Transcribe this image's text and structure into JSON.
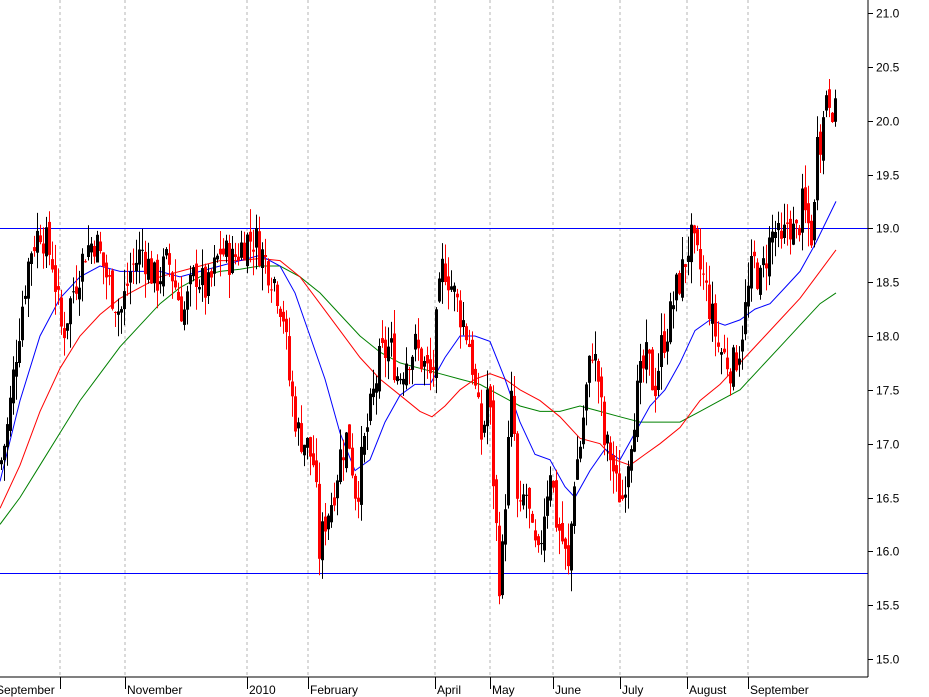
{
  "chart_data": {
    "type": "candlestick",
    "title": "",
    "xlabel": "",
    "ylabel": "",
    "ylim": [
      14.85,
      21.1
    ],
    "y_ticks": [
      "15.0",
      "15.5",
      "16.0",
      "16.5",
      "17.0",
      "17.5",
      "18.0",
      "18.5",
      "19.0",
      "19.5",
      "20.0",
      "20.5",
      "21.0"
    ],
    "month_labels": [
      "September",
      "November",
      "2010",
      "February",
      "April",
      "May",
      "June",
      "July",
      "August",
      "September"
    ],
    "grid": "vertical dashed at month starts",
    "horizontal_lines": [
      {
        "value": 19.0,
        "color": "#0000ff"
      },
      {
        "value": 15.8,
        "color": "#0000ff"
      }
    ],
    "series_colors": {
      "up_bar": "#000000",
      "down_bar": "#ff0000",
      "ma_short": "#0000ff",
      "ma_mid": "#ff0000",
      "ma_long": "#008000"
    },
    "price_path": [
      {
        "x": 0,
        "v": 16.8
      },
      {
        "x": 8,
        "v": 17.2
      },
      {
        "x": 15,
        "v": 17.8
      },
      {
        "x": 22,
        "v": 18.3
      },
      {
        "x": 30,
        "v": 18.8
      },
      {
        "x": 40,
        "v": 19.0
      },
      {
        "x": 52,
        "v": 18.7
      },
      {
        "x": 62,
        "v": 18.0
      },
      {
        "x": 72,
        "v": 18.4
      },
      {
        "x": 85,
        "v": 18.8
      },
      {
        "x": 95,
        "v": 18.9
      },
      {
        "x": 108,
        "v": 18.5
      },
      {
        "x": 120,
        "v": 18.2
      },
      {
        "x": 130,
        "v": 18.6
      },
      {
        "x": 142,
        "v": 18.8
      },
      {
        "x": 155,
        "v": 18.5
      },
      {
        "x": 168,
        "v": 18.7
      },
      {
        "x": 183,
        "v": 18.2
      },
      {
        "x": 195,
        "v": 18.6
      },
      {
        "x": 207,
        "v": 18.4
      },
      {
        "x": 220,
        "v": 18.8
      },
      {
        "x": 232,
        "v": 18.7
      },
      {
        "x": 245,
        "v": 18.9
      },
      {
        "x": 255,
        "v": 18.9
      },
      {
        "x": 265,
        "v": 18.7
      },
      {
        "x": 275,
        "v": 18.5
      },
      {
        "x": 283,
        "v": 18.2
      },
      {
        "x": 290,
        "v": 17.5
      },
      {
        "x": 298,
        "v": 17.1
      },
      {
        "x": 306,
        "v": 17.0
      },
      {
        "x": 314,
        "v": 16.8
      },
      {
        "x": 319,
        "v": 16.0
      },
      {
        "x": 325,
        "v": 16.3
      },
      {
        "x": 332,
        "v": 16.5
      },
      {
        "x": 340,
        "v": 16.9
      },
      {
        "x": 348,
        "v": 17.1
      },
      {
        "x": 356,
        "v": 16.5
      },
      {
        "x": 364,
        "v": 17.0
      },
      {
        "x": 372,
        "v": 17.4
      },
      {
        "x": 380,
        "v": 17.8
      },
      {
        "x": 390,
        "v": 17.9
      },
      {
        "x": 398,
        "v": 17.6
      },
      {
        "x": 406,
        "v": 17.8
      },
      {
        "x": 415,
        "v": 17.9
      },
      {
        "x": 425,
        "v": 17.7
      },
      {
        "x": 432,
        "v": 17.6
      },
      {
        "x": 437,
        "v": 18.2
      },
      {
        "x": 443,
        "v": 18.7
      },
      {
        "x": 450,
        "v": 18.5
      },
      {
        "x": 457,
        "v": 18.3
      },
      {
        "x": 464,
        "v": 18.1
      },
      {
        "x": 470,
        "v": 17.9
      },
      {
        "x": 476,
        "v": 17.4
      },
      {
        "x": 482,
        "v": 17.0
      },
      {
        "x": 488,
        "v": 17.6
      },
      {
        "x": 494,
        "v": 16.5
      },
      {
        "x": 500,
        "v": 15.6
      },
      {
        "x": 506,
        "v": 16.7
      },
      {
        "x": 512,
        "v": 17.5
      },
      {
        "x": 518,
        "v": 16.2
      },
      {
        "x": 525,
        "v": 16.6
      },
      {
        "x": 532,
        "v": 16.1
      },
      {
        "x": 538,
        "v": 15.9
      },
      {
        "x": 544,
        "v": 16.4
      },
      {
        "x": 550,
        "v": 16.8
      },
      {
        "x": 556,
        "v": 16.3
      },
      {
        "x": 562,
        "v": 16.1
      },
      {
        "x": 568,
        "v": 15.8
      },
      {
        "x": 574,
        "v": 16.7
      },
      {
        "x": 580,
        "v": 17.0
      },
      {
        "x": 586,
        "v": 17.5
      },
      {
        "x": 592,
        "v": 17.9
      },
      {
        "x": 598,
        "v": 17.6
      },
      {
        "x": 604,
        "v": 17.0
      },
      {
        "x": 610,
        "v": 16.9
      },
      {
        "x": 616,
        "v": 16.6
      },
      {
        "x": 622,
        "v": 16.5
      },
      {
        "x": 628,
        "v": 16.9
      },
      {
        "x": 634,
        "v": 17.3
      },
      {
        "x": 640,
        "v": 17.6
      },
      {
        "x": 647,
        "v": 17.8
      },
      {
        "x": 654,
        "v": 17.5
      },
      {
        "x": 661,
        "v": 17.9
      },
      {
        "x": 668,
        "v": 18.1
      },
      {
        "x": 675,
        "v": 18.4
      },
      {
        "x": 682,
        "v": 18.6
      },
      {
        "x": 690,
        "v": 18.9
      },
      {
        "x": 697,
        "v": 18.7
      },
      {
        "x": 704,
        "v": 18.5
      },
      {
        "x": 711,
        "v": 18.2
      },
      {
        "x": 718,
        "v": 17.9
      },
      {
        "x": 725,
        "v": 17.8
      },
      {
        "x": 732,
        "v": 17.7
      },
      {
        "x": 739,
        "v": 17.9
      },
      {
        "x": 746,
        "v": 18.3
      },
      {
        "x": 753,
        "v": 18.7
      },
      {
        "x": 760,
        "v": 18.5
      },
      {
        "x": 767,
        "v": 18.8
      },
      {
        "x": 774,
        "v": 19.0
      },
      {
        "x": 781,
        "v": 18.8
      },
      {
        "x": 788,
        "v": 19.1
      },
      {
        "x": 795,
        "v": 18.9
      },
      {
        "x": 802,
        "v": 19.2
      },
      {
        "x": 809,
        "v": 19.0
      },
      {
        "x": 813,
        "v": 18.9
      },
      {
        "x": 817,
        "v": 20.0
      },
      {
        "x": 821,
        "v": 19.8
      },
      {
        "x": 826,
        "v": 20.3
      },
      {
        "x": 831,
        "v": 20.2
      },
      {
        "x": 836,
        "v": 20.0
      }
    ],
    "ma_short": [
      {
        "x": 0,
        "v": 16.65
      },
      {
        "x": 20,
        "v": 17.4
      },
      {
        "x": 40,
        "v": 18.0
      },
      {
        "x": 60,
        "v": 18.35
      },
      {
        "x": 80,
        "v": 18.55
      },
      {
        "x": 100,
        "v": 18.65
      },
      {
        "x": 120,
        "v": 18.6
      },
      {
        "x": 140,
        "v": 18.6
      },
      {
        "x": 160,
        "v": 18.6
      },
      {
        "x": 180,
        "v": 18.55
      },
      {
        "x": 200,
        "v": 18.6
      },
      {
        "x": 220,
        "v": 18.65
      },
      {
        "x": 240,
        "v": 18.7
      },
      {
        "x": 260,
        "v": 18.75
      },
      {
        "x": 280,
        "v": 18.65
      },
      {
        "x": 295,
        "v": 18.4
      },
      {
        "x": 310,
        "v": 18.0
      },
      {
        "x": 325,
        "v": 17.6
      },
      {
        "x": 340,
        "v": 17.1
      },
      {
        "x": 355,
        "v": 16.75
      },
      {
        "x": 370,
        "v": 16.85
      },
      {
        "x": 385,
        "v": 17.2
      },
      {
        "x": 400,
        "v": 17.45
      },
      {
        "x": 415,
        "v": 17.55
      },
      {
        "x": 430,
        "v": 17.55
      },
      {
        "x": 445,
        "v": 17.8
      },
      {
        "x": 460,
        "v": 18.0
      },
      {
        "x": 475,
        "v": 18.0
      },
      {
        "x": 490,
        "v": 17.95
      },
      {
        "x": 505,
        "v": 17.6
      },
      {
        "x": 520,
        "v": 17.2
      },
      {
        "x": 535,
        "v": 16.9
      },
      {
        "x": 550,
        "v": 16.85
      },
      {
        "x": 565,
        "v": 16.6
      },
      {
        "x": 575,
        "v": 16.5
      },
      {
        "x": 590,
        "v": 16.75
      },
      {
        "x": 605,
        "v": 16.95
      },
      {
        "x": 620,
        "v": 16.85
      },
      {
        "x": 635,
        "v": 17.1
      },
      {
        "x": 650,
        "v": 17.35
      },
      {
        "x": 665,
        "v": 17.5
      },
      {
        "x": 680,
        "v": 17.75
      },
      {
        "x": 695,
        "v": 18.05
      },
      {
        "x": 710,
        "v": 18.15
      },
      {
        "x": 725,
        "v": 18.1
      },
      {
        "x": 740,
        "v": 18.15
      },
      {
        "x": 755,
        "v": 18.25
      },
      {
        "x": 770,
        "v": 18.3
      },
      {
        "x": 785,
        "v": 18.45
      },
      {
        "x": 800,
        "v": 18.6
      },
      {
        "x": 815,
        "v": 18.85
      },
      {
        "x": 836,
        "v": 19.25
      }
    ],
    "ma_mid": [
      {
        "x": 0,
        "v": 16.4
      },
      {
        "x": 20,
        "v": 16.8
      },
      {
        "x": 40,
        "v": 17.3
      },
      {
        "x": 60,
        "v": 17.7
      },
      {
        "x": 80,
        "v": 18.0
      },
      {
        "x": 100,
        "v": 18.2
      },
      {
        "x": 120,
        "v": 18.35
      },
      {
        "x": 140,
        "v": 18.45
      },
      {
        "x": 160,
        "v": 18.55
      },
      {
        "x": 180,
        "v": 18.6
      },
      {
        "x": 200,
        "v": 18.65
      },
      {
        "x": 220,
        "v": 18.7
      },
      {
        "x": 240,
        "v": 18.7
      },
      {
        "x": 260,
        "v": 18.72
      },
      {
        "x": 280,
        "v": 18.7
      },
      {
        "x": 300,
        "v": 18.55
      },
      {
        "x": 320,
        "v": 18.3
      },
      {
        "x": 340,
        "v": 18.05
      },
      {
        "x": 360,
        "v": 17.8
      },
      {
        "x": 380,
        "v": 17.6
      },
      {
        "x": 400,
        "v": 17.45
      },
      {
        "x": 420,
        "v": 17.3
      },
      {
        "x": 432,
        "v": 17.25
      },
      {
        "x": 445,
        "v": 17.35
      },
      {
        "x": 460,
        "v": 17.5
      },
      {
        "x": 475,
        "v": 17.6
      },
      {
        "x": 490,
        "v": 17.65
      },
      {
        "x": 505,
        "v": 17.6
      },
      {
        "x": 520,
        "v": 17.5
      },
      {
        "x": 540,
        "v": 17.4
      },
      {
        "x": 560,
        "v": 17.25
      },
      {
        "x": 580,
        "v": 17.05
      },
      {
        "x": 600,
        "v": 17.0
      },
      {
        "x": 615,
        "v": 16.85
      },
      {
        "x": 630,
        "v": 16.8
      },
      {
        "x": 645,
        "v": 16.9
      },
      {
        "x": 660,
        "v": 17.0
      },
      {
        "x": 680,
        "v": 17.15
      },
      {
        "x": 700,
        "v": 17.4
      },
      {
        "x": 720,
        "v": 17.55
      },
      {
        "x": 740,
        "v": 17.75
      },
      {
        "x": 760,
        "v": 17.95
      },
      {
        "x": 780,
        "v": 18.15
      },
      {
        "x": 800,
        "v": 18.35
      },
      {
        "x": 820,
        "v": 18.6
      },
      {
        "x": 836,
        "v": 18.8
      }
    ],
    "ma_long": [
      {
        "x": 0,
        "v": 16.25
      },
      {
        "x": 20,
        "v": 16.5
      },
      {
        "x": 40,
        "v": 16.8
      },
      {
        "x": 60,
        "v": 17.1
      },
      {
        "x": 80,
        "v": 17.4
      },
      {
        "x": 100,
        "v": 17.65
      },
      {
        "x": 120,
        "v": 17.9
      },
      {
        "x": 140,
        "v": 18.1
      },
      {
        "x": 160,
        "v": 18.3
      },
      {
        "x": 180,
        "v": 18.45
      },
      {
        "x": 200,
        "v": 18.55
      },
      {
        "x": 220,
        "v": 18.6
      },
      {
        "x": 240,
        "v": 18.62
      },
      {
        "x": 260,
        "v": 18.65
      },
      {
        "x": 280,
        "v": 18.65
      },
      {
        "x": 300,
        "v": 18.55
      },
      {
        "x": 320,
        "v": 18.4
      },
      {
        "x": 340,
        "v": 18.2
      },
      {
        "x": 360,
        "v": 18.0
      },
      {
        "x": 380,
        "v": 17.85
      },
      {
        "x": 400,
        "v": 17.75
      },
      {
        "x": 420,
        "v": 17.7
      },
      {
        "x": 440,
        "v": 17.65
      },
      {
        "x": 460,
        "v": 17.6
      },
      {
        "x": 480,
        "v": 17.55
      },
      {
        "x": 500,
        "v": 17.45
      },
      {
        "x": 520,
        "v": 17.35
      },
      {
        "x": 540,
        "v": 17.3
      },
      {
        "x": 560,
        "v": 17.3
      },
      {
        "x": 580,
        "v": 17.35
      },
      {
        "x": 600,
        "v": 17.3
      },
      {
        "x": 620,
        "v": 17.25
      },
      {
        "x": 640,
        "v": 17.2
      },
      {
        "x": 660,
        "v": 17.2
      },
      {
        "x": 680,
        "v": 17.2
      },
      {
        "x": 700,
        "v": 17.3
      },
      {
        "x": 720,
        "v": 17.4
      },
      {
        "x": 740,
        "v": 17.5
      },
      {
        "x": 760,
        "v": 17.7
      },
      {
        "x": 780,
        "v": 17.9
      },
      {
        "x": 800,
        "v": 18.1
      },
      {
        "x": 820,
        "v": 18.3
      },
      {
        "x": 836,
        "v": 18.4
      }
    ]
  }
}
